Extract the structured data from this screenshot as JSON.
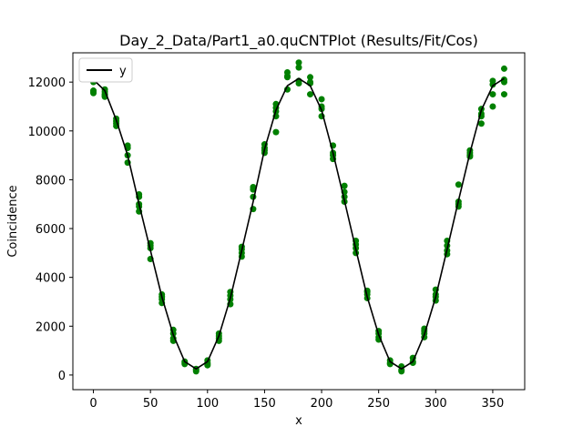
{
  "chart_data": {
    "type": "scatter",
    "title": "Day_2_Data/Part1_a0.quCNTPlot (Results/Fit/Cos)",
    "xlabel": "x",
    "ylabel": "Coincidence",
    "xlim": [
      -18,
      378
    ],
    "ylim": [
      -600,
      13200
    ],
    "xticks": [
      0,
      50,
      100,
      150,
      200,
      250,
      300,
      350
    ],
    "yticks": [
      0,
      2000,
      4000,
      6000,
      8000,
      10000,
      12000
    ],
    "grid": false,
    "legend": {
      "placement": "top-left",
      "entries": [
        "y"
      ]
    },
    "colors": {
      "points": "#008000",
      "fit_line": "#000000"
    },
    "series": [
      {
        "type": "scatter",
        "points": [
          [
            0,
            12100
          ],
          [
            0,
            11550
          ],
          [
            0,
            11650
          ],
          [
            0,
            12000
          ],
          [
            0,
            11600
          ],
          [
            10,
            11700
          ],
          [
            10,
            11400
          ],
          [
            10,
            11500
          ],
          [
            10,
            11600
          ],
          [
            10,
            11450
          ],
          [
            20,
            10500
          ],
          [
            20,
            10200
          ],
          [
            20,
            10300
          ],
          [
            20,
            10400
          ],
          [
            30,
            9400
          ],
          [
            30,
            9000
          ],
          [
            30,
            8700
          ],
          [
            30,
            9300
          ],
          [
            40,
            7400
          ],
          [
            40,
            7000
          ],
          [
            40,
            6700
          ],
          [
            40,
            7300
          ],
          [
            40,
            6900
          ],
          [
            50,
            5400
          ],
          [
            50,
            5200
          ],
          [
            50,
            4750
          ],
          [
            50,
            5300
          ],
          [
            60,
            3300
          ],
          [
            60,
            3100
          ],
          [
            60,
            2950
          ],
          [
            60,
            3200
          ],
          [
            70,
            1850
          ],
          [
            70,
            1500
          ],
          [
            70,
            1400
          ],
          [
            70,
            1700
          ],
          [
            80,
            550
          ],
          [
            80,
            450
          ],
          [
            80,
            500
          ],
          [
            90,
            200
          ],
          [
            90,
            150
          ],
          [
            90,
            250
          ],
          [
            100,
            600
          ],
          [
            100,
            400
          ],
          [
            100,
            500
          ],
          [
            100,
            450
          ],
          [
            110,
            1700
          ],
          [
            110,
            1500
          ],
          [
            110,
            1400
          ],
          [
            110,
            1600
          ],
          [
            120,
            3400
          ],
          [
            120,
            3100
          ],
          [
            120,
            2900
          ],
          [
            120,
            3250
          ],
          [
            130,
            5250
          ],
          [
            130,
            5000
          ],
          [
            130,
            4850
          ],
          [
            130,
            5150
          ],
          [
            140,
            7700
          ],
          [
            140,
            7300
          ],
          [
            140,
            6800
          ],
          [
            140,
            7600
          ],
          [
            150,
            9450
          ],
          [
            150,
            9200
          ],
          [
            150,
            9100
          ],
          [
            150,
            9300
          ],
          [
            160,
            11100
          ],
          [
            160,
            10950
          ],
          [
            160,
            10600
          ],
          [
            160,
            9950
          ],
          [
            160,
            10800
          ],
          [
            170,
            12400
          ],
          [
            170,
            12250
          ],
          [
            170,
            11700
          ],
          [
            170,
            12200
          ],
          [
            180,
            12800
          ],
          [
            180,
            12600
          ],
          [
            180,
            11950
          ],
          [
            180,
            12050
          ],
          [
            190,
            12200
          ],
          [
            190,
            12000
          ],
          [
            190,
            11950
          ],
          [
            190,
            11500
          ],
          [
            200,
            11300
          ],
          [
            200,
            10900
          ],
          [
            200,
            10600
          ],
          [
            200,
            11000
          ],
          [
            210,
            9400
          ],
          [
            210,
            9000
          ],
          [
            210,
            8850
          ],
          [
            210,
            9100
          ],
          [
            220,
            7750
          ],
          [
            220,
            7300
          ],
          [
            220,
            7100
          ],
          [
            220,
            7500
          ],
          [
            230,
            5500
          ],
          [
            230,
            5200
          ],
          [
            230,
            5000
          ],
          [
            230,
            5350
          ],
          [
            240,
            3450
          ],
          [
            240,
            3300
          ],
          [
            240,
            3150
          ],
          [
            240,
            3400
          ],
          [
            250,
            1800
          ],
          [
            250,
            1550
          ],
          [
            250,
            1450
          ],
          [
            250,
            1700
          ],
          [
            260,
            600
          ],
          [
            260,
            500
          ],
          [
            260,
            450
          ],
          [
            270,
            350
          ],
          [
            270,
            200
          ],
          [
            270,
            150
          ],
          [
            280,
            700
          ],
          [
            280,
            500
          ],
          [
            280,
            550
          ],
          [
            290,
            1900
          ],
          [
            290,
            1700
          ],
          [
            290,
            1550
          ],
          [
            290,
            1800
          ],
          [
            300,
            3500
          ],
          [
            300,
            3200
          ],
          [
            300,
            3050
          ],
          [
            300,
            3300
          ],
          [
            310,
            5500
          ],
          [
            310,
            5100
          ],
          [
            310,
            4950
          ],
          [
            310,
            5300
          ],
          [
            320,
            7800
          ],
          [
            320,
            7100
          ],
          [
            320,
            6900
          ],
          [
            320,
            7000
          ],
          [
            330,
            9200
          ],
          [
            330,
            9000
          ],
          [
            330,
            8950
          ],
          [
            330,
            9100
          ],
          [
            340,
            10900
          ],
          [
            340,
            10700
          ],
          [
            340,
            10300
          ],
          [
            340,
            10600
          ],
          [
            350,
            12050
          ],
          [
            350,
            11500
          ],
          [
            350,
            11000
          ],
          [
            350,
            11900
          ],
          [
            360,
            12550
          ],
          [
            360,
            12100
          ],
          [
            360,
            11500
          ],
          [
            360,
            12000
          ]
        ]
      },
      {
        "name": "y",
        "type": "line",
        "points": [
          [
            0,
            12100
          ],
          [
            10,
            11650
          ],
          [
            20,
            10450
          ],
          [
            30,
            9000
          ],
          [
            40,
            7000
          ],
          [
            50,
            5100
          ],
          [
            60,
            3200
          ],
          [
            70,
            1650
          ],
          [
            80,
            550
          ],
          [
            90,
            250
          ],
          [
            100,
            550
          ],
          [
            110,
            1600
          ],
          [
            120,
            3150
          ],
          [
            130,
            5100
          ],
          [
            140,
            7100
          ],
          [
            150,
            9250
          ],
          [
            160,
            10850
          ],
          [
            170,
            11850
          ],
          [
            180,
            12150
          ],
          [
            190,
            11850
          ],
          [
            200,
            10850
          ],
          [
            210,
            9100
          ],
          [
            220,
            7150
          ],
          [
            230,
            5150
          ],
          [
            240,
            3200
          ],
          [
            250,
            1650
          ],
          [
            260,
            550
          ],
          [
            270,
            250
          ],
          [
            280,
            550
          ],
          [
            290,
            1650
          ],
          [
            300,
            3200
          ],
          [
            310,
            5150
          ],
          [
            320,
            7150
          ],
          [
            330,
            9100
          ],
          [
            340,
            10850
          ],
          [
            350,
            11850
          ],
          [
            360,
            12150
          ]
        ]
      }
    ]
  }
}
